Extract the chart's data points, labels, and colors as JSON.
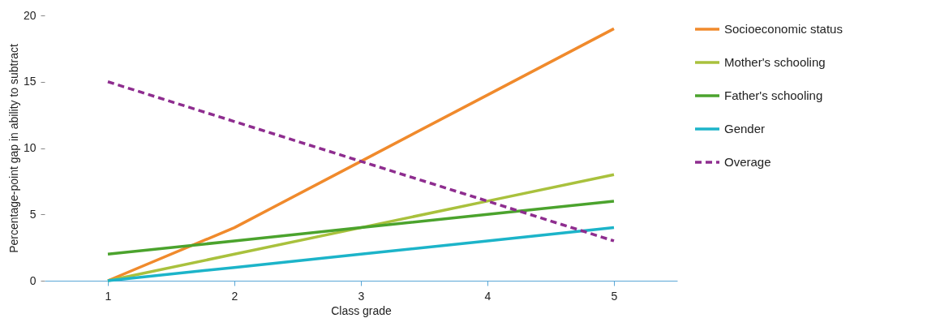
{
  "chart_data": {
    "type": "line",
    "xlabel": "Class grade",
    "ylabel": "Percentage-point gap in ability to subtract",
    "categories": [
      "1",
      "2",
      "3",
      "4",
      "5"
    ],
    "ylim": [
      0,
      20
    ],
    "yticks": [
      0,
      5,
      10,
      15,
      20
    ],
    "grid": false,
    "legend": "right",
    "line_style": "solid",
    "series": [
      {
        "name": "Socioeconomic status",
        "color": "#f08a2c",
        "values": [
          0,
          4,
          9,
          14,
          19
        ]
      },
      {
        "name": "Mother's schooling",
        "color": "#a9c13d",
        "values": [
          0,
          2,
          4,
          6,
          8
        ]
      },
      {
        "name": "Father's schooling",
        "color": "#4ba32d",
        "values": [
          2,
          3,
          4,
          5,
          6
        ]
      },
      {
        "name": "Gender",
        "color": "#1cb4c9",
        "values": [
          0,
          1,
          2,
          3,
          4
        ]
      },
      {
        "name": "Overage",
        "color": "#8e2d8f",
        "values": [
          15,
          12,
          9,
          6,
          3
        ],
        "line_style": "dashed"
      }
    ]
  }
}
